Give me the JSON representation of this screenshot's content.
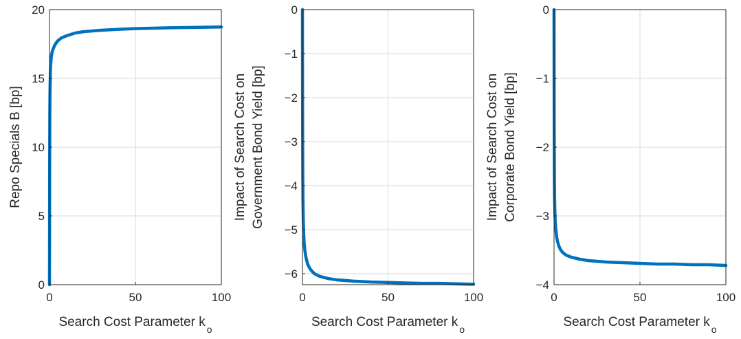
{
  "chart_data": [
    {
      "type": "line",
      "xlabel": "Search Cost Parameter k",
      "xlabel_sub": "o",
      "ylabel": [
        "Repo Specials B [bp]"
      ],
      "xlim": [
        0,
        100
      ],
      "ylim": [
        0,
        20
      ],
      "xticks": [
        0,
        50,
        100
      ],
      "yticks": [
        0,
        5,
        10,
        15,
        20
      ],
      "grid": true,
      "series": [
        {
          "color": "#0072BD",
          "x": [
            0,
            0.1,
            0.2,
            0.3,
            0.5,
            0.7,
            1,
            1.5,
            2,
            3,
            4,
            5,
            7,
            10,
            15,
            20,
            30,
            40,
            50,
            60,
            70,
            80,
            90,
            100
          ],
          "y": [
            0,
            9.0,
            12.5,
            14.0,
            15.4,
            16.0,
            16.5,
            16.9,
            17.1,
            17.4,
            17.6,
            17.75,
            17.95,
            18.1,
            18.3,
            18.4,
            18.5,
            18.57,
            18.62,
            18.65,
            18.68,
            18.7,
            18.72,
            18.74
          ]
        }
      ]
    },
    {
      "type": "line",
      "xlabel": "Search Cost Parameter k",
      "xlabel_sub": "o",
      "ylabel": [
        "Impact of Search Cost on",
        "Government Bond Yield [bp]"
      ],
      "xlim": [
        0,
        100
      ],
      "ylim": [
        -6.25,
        0
      ],
      "xticks": [
        0,
        50,
        100
      ],
      "yticks": [
        0,
        -1,
        -2,
        -3,
        -4,
        -5,
        -6
      ],
      "grid": true,
      "series": [
        {
          "color": "#0072BD",
          "x": [
            0,
            0.05,
            0.1,
            0.2,
            0.3,
            0.5,
            0.7,
            1,
            1.5,
            2,
            3,
            4,
            5,
            7,
            10,
            15,
            20,
            30,
            40,
            50,
            60,
            70,
            80,
            90,
            100
          ],
          "y": [
            0,
            -1.5,
            -2.6,
            -3.8,
            -4.3,
            -4.8,
            -5.05,
            -5.3,
            -5.5,
            -5.62,
            -5.78,
            -5.86,
            -5.92,
            -6.0,
            -6.06,
            -6.11,
            -6.14,
            -6.17,
            -6.19,
            -6.2,
            -6.21,
            -6.22,
            -6.22,
            -6.23,
            -6.24
          ]
        }
      ]
    },
    {
      "type": "line",
      "xlabel": "Search Cost Parameter k",
      "xlabel_sub": "o",
      "ylabel": [
        "Impact of Search Cost on",
        "Corporate Bond Yield [bp]"
      ],
      "xlim": [
        0,
        100
      ],
      "ylim": [
        -4,
        0
      ],
      "xticks": [
        0,
        50,
        100
      ],
      "yticks": [
        0,
        -1,
        -2,
        -3,
        -4
      ],
      "grid": true,
      "series": [
        {
          "color": "#0072BD",
          "x": [
            0,
            0.05,
            0.1,
            0.2,
            0.3,
            0.5,
            0.7,
            1,
            1.5,
            2,
            3,
            4,
            5,
            7,
            10,
            15,
            20,
            30,
            40,
            50,
            60,
            70,
            80,
            90,
            100
          ],
          "y": [
            0,
            -1.0,
            -1.7,
            -2.4,
            -2.7,
            -2.95,
            -3.08,
            -3.18,
            -3.3,
            -3.37,
            -3.45,
            -3.5,
            -3.53,
            -3.57,
            -3.6,
            -3.63,
            -3.65,
            -3.67,
            -3.68,
            -3.69,
            -3.7,
            -3.7,
            -3.71,
            -3.71,
            -3.72
          ]
        }
      ]
    }
  ]
}
